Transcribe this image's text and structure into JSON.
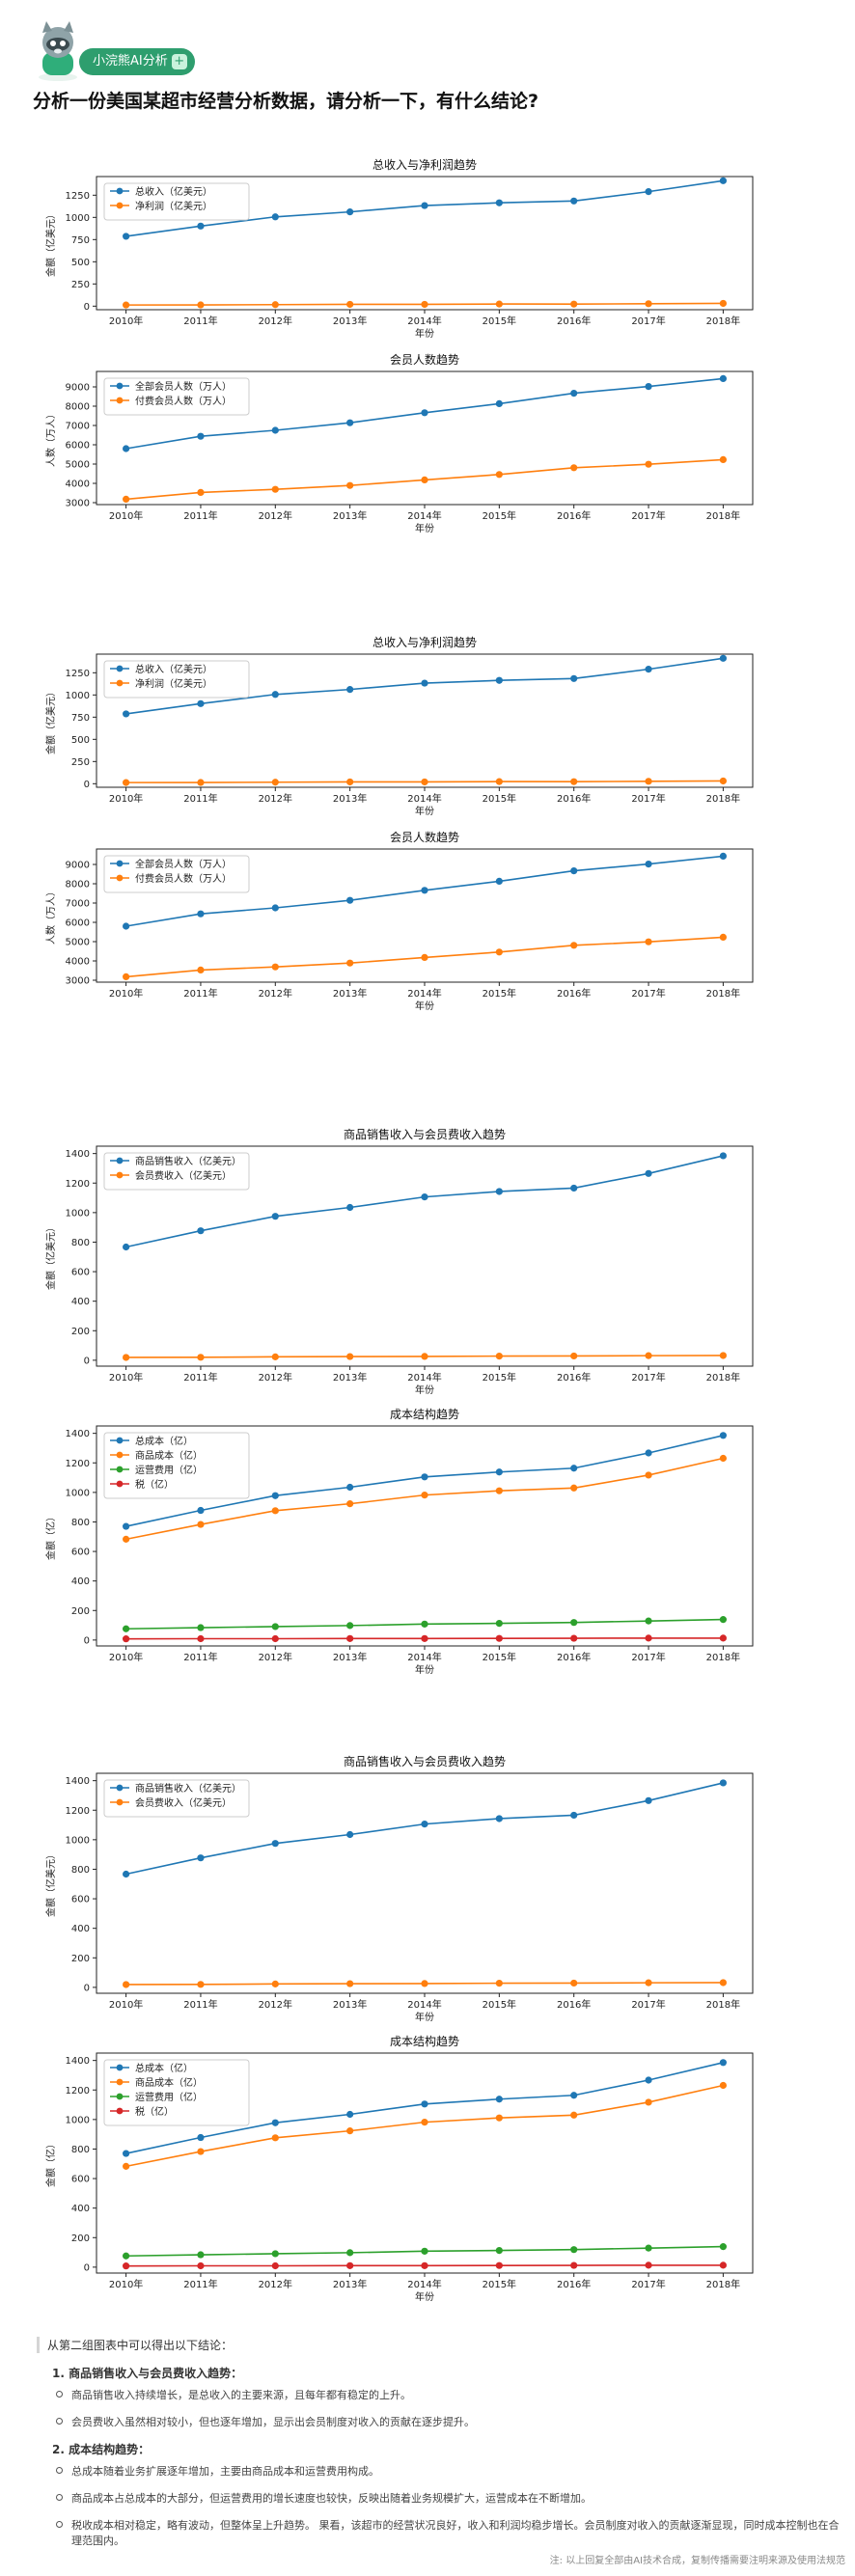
{
  "badge_label": "小浣熊AI分析",
  "badge_plus": "+",
  "question": "分析一份美国某超市经营分析数据，请分析一下，有什么结论?",
  "years": [
    "2010年",
    "2011年",
    "2012年",
    "2013年",
    "2014年",
    "2015年",
    "2016年",
    "2017年",
    "2018年"
  ],
  "colors": {
    "blue": "#1f77b4",
    "orange": "#ff7f0e",
    "green": "#2ca02c",
    "red": "#d62728"
  },
  "chart_data": [
    {
      "type": "line",
      "title": "总收入与净利润趋势",
      "xlabel": "年份",
      "ylabel": "金额（亿美元）",
      "categories": [
        "2010年",
        "2011年",
        "2012年",
        "2013年",
        "2014年",
        "2015年",
        "2016年",
        "2017年",
        "2018年"
      ],
      "ylim": [
        -40,
        1460
      ],
      "yticks": [
        0,
        250,
        500,
        750,
        1000,
        1250
      ],
      "legend": "top-left",
      "series": [
        {
          "name": "总收入（亿美元）",
          "color": "#1f77b4",
          "values": [
            787,
            902,
            1006,
            1062,
            1133,
            1164,
            1185,
            1290,
            1413
          ]
        },
        {
          "name": "净利润（亿美元）",
          "color": "#ff7f0e",
          "values": [
            13,
            14,
            17,
            20,
            20,
            24,
            23,
            27,
            31
          ]
        }
      ]
    },
    {
      "type": "line",
      "title": "会员人数趋势",
      "xlabel": "年份",
      "ylabel": "人数（万人）",
      "categories": [
        "2010年",
        "2011年",
        "2012年",
        "2013年",
        "2014年",
        "2015年",
        "2016年",
        "2017年",
        "2018年"
      ],
      "ylim": [
        2900,
        9800
      ],
      "yticks": [
        3000,
        4000,
        5000,
        6000,
        7000,
        8000,
        9000
      ],
      "legend": "top-left",
      "series": [
        {
          "name": "全部会员人数（万人）",
          "color": "#1f77b4",
          "values": [
            5800,
            6440,
            6750,
            7140,
            7660,
            8130,
            8670,
            9020,
            9430
          ]
        },
        {
          "name": "付费会员人数（万人）",
          "color": "#ff7f0e",
          "values": [
            3180,
            3530,
            3690,
            3890,
            4180,
            4460,
            4810,
            4990,
            5230
          ]
        }
      ]
    },
    {
      "type": "line",
      "title": "总收入与净利润趋势",
      "xlabel": "年份",
      "ylabel": "金额（亿美元）",
      "categories": [
        "2010年",
        "2011年",
        "2012年",
        "2013年",
        "2014年",
        "2015年",
        "2016年",
        "2017年",
        "2018年"
      ],
      "ylim": [
        -40,
        1460
      ],
      "yticks": [
        0,
        250,
        500,
        750,
        1000,
        1250
      ],
      "legend": "top-left",
      "series": [
        {
          "name": "总收入（亿美元）",
          "color": "#1f77b4",
          "values": [
            787,
            902,
            1006,
            1062,
            1133,
            1164,
            1185,
            1290,
            1413
          ]
        },
        {
          "name": "净利润（亿美元）",
          "color": "#ff7f0e",
          "values": [
            13,
            14,
            17,
            20,
            20,
            24,
            23,
            27,
            31
          ]
        }
      ]
    },
    {
      "type": "line",
      "title": "会员人数趋势",
      "xlabel": "年份",
      "ylabel": "人数（万人）",
      "categories": [
        "2010年",
        "2011年",
        "2012年",
        "2013年",
        "2014年",
        "2015年",
        "2016年",
        "2017年",
        "2018年"
      ],
      "ylim": [
        2900,
        9800
      ],
      "yticks": [
        3000,
        4000,
        5000,
        6000,
        7000,
        8000,
        9000
      ],
      "legend": "top-left",
      "series": [
        {
          "name": "全部会员人数（万人）",
          "color": "#1f77b4",
          "values": [
            5800,
            6440,
            6750,
            7140,
            7660,
            8130,
            8670,
            9020,
            9430
          ]
        },
        {
          "name": "付费会员人数（万人）",
          "color": "#ff7f0e",
          "values": [
            3180,
            3530,
            3690,
            3890,
            4180,
            4460,
            4810,
            4990,
            5230
          ]
        }
      ]
    },
    {
      "type": "line",
      "title": "商品销售收入与会员费收入趋势",
      "xlabel": "年份",
      "ylabel": "金额（亿美元）",
      "categories": [
        "2010年",
        "2011年",
        "2012年",
        "2013年",
        "2014年",
        "2015年",
        "2016年",
        "2017年",
        "2018年"
      ],
      "ylim": [
        -40,
        1450
      ],
      "yticks": [
        0,
        200,
        400,
        600,
        800,
        1000,
        1200,
        1400
      ],
      "legend": "top-left",
      "series": [
        {
          "name": "商品销售收入（亿美元）",
          "color": "#1f77b4",
          "values": [
            767,
            877,
            975,
            1035,
            1106,
            1143,
            1166,
            1265,
            1385
          ]
        },
        {
          "name": "会员费收入（亿美元）",
          "color": "#ff7f0e",
          "values": [
            19,
            20,
            23,
            25,
            26,
            28,
            29,
            31,
            32
          ]
        }
      ]
    },
    {
      "type": "line",
      "title": "成本结构趋势",
      "xlabel": "年份",
      "ylabel": "金额（亿）",
      "categories": [
        "2010年",
        "2011年",
        "2012年",
        "2013年",
        "2014年",
        "2015年",
        "2016年",
        "2017年",
        "2018年"
      ],
      "ylim": [
        -40,
        1450
      ],
      "yticks": [
        0,
        200,
        400,
        600,
        800,
        1000,
        1200,
        1400
      ],
      "legend": "top-left",
      "series": [
        {
          "name": "总成本（亿）",
          "color": "#1f77b4",
          "values": [
            770,
            878,
            978,
            1035,
            1105,
            1138,
            1164,
            1267,
            1386
          ]
        },
        {
          "name": "商品成本（亿）",
          "color": "#ff7f0e",
          "values": [
            683,
            783,
            876,
            923,
            982,
            1011,
            1030,
            1117,
            1231
          ]
        },
        {
          "name": "运营费用（亿）",
          "color": "#2ca02c",
          "values": [
            76,
            84,
            91,
            98,
            108,
            113,
            119,
            129,
            139
          ]
        },
        {
          "name": "税（亿）",
          "color": "#d62728",
          "values": [
            8,
            9,
            9,
            10,
            10,
            11,
            12,
            13,
            13
          ]
        }
      ]
    },
    {
      "type": "line",
      "title": "商品销售收入与会员费收入趋势",
      "xlabel": "年份",
      "ylabel": "金额（亿美元）",
      "categories": [
        "2010年",
        "2011年",
        "2012年",
        "2013年",
        "2014年",
        "2015年",
        "2016年",
        "2017年",
        "2018年"
      ],
      "ylim": [
        -40,
        1450
      ],
      "yticks": [
        0,
        200,
        400,
        600,
        800,
        1000,
        1200,
        1400
      ],
      "legend": "top-left",
      "series": [
        {
          "name": "商品销售收入（亿美元）",
          "color": "#1f77b4",
          "values": [
            767,
            877,
            975,
            1035,
            1106,
            1143,
            1166,
            1265,
            1385
          ]
        },
        {
          "name": "会员费收入（亿美元）",
          "color": "#ff7f0e",
          "values": [
            19,
            20,
            23,
            25,
            26,
            28,
            29,
            31,
            32
          ]
        }
      ]
    },
    {
      "type": "line",
      "title": "成本结构趋势",
      "xlabel": "年份",
      "ylabel": "金额（亿）",
      "categories": [
        "2010年",
        "2011年",
        "2012年",
        "2013年",
        "2014年",
        "2015年",
        "2016年",
        "2017年",
        "2018年"
      ],
      "ylim": [
        -40,
        1450
      ],
      "yticks": [
        0,
        200,
        400,
        600,
        800,
        1000,
        1200,
        1400
      ],
      "legend": "top-left",
      "series": [
        {
          "name": "总成本（亿）",
          "color": "#1f77b4",
          "values": [
            770,
            878,
            978,
            1035,
            1105,
            1138,
            1164,
            1267,
            1386
          ]
        },
        {
          "name": "商品成本（亿）",
          "color": "#ff7f0e",
          "values": [
            683,
            783,
            876,
            923,
            982,
            1011,
            1030,
            1117,
            1231
          ]
        },
        {
          "name": "运营费用（亿）",
          "color": "#2ca02c",
          "values": [
            76,
            84,
            91,
            98,
            108,
            113,
            119,
            129,
            139
          ]
        },
        {
          "name": "税（亿）",
          "color": "#d62728",
          "values": [
            8,
            9,
            9,
            10,
            10,
            11,
            12,
            13,
            13
          ]
        }
      ]
    }
  ],
  "conclusion": {
    "intro": "从第二组图表中可以得出以下结论：",
    "sections": [
      {
        "title": "1. 商品销售收入与会员费收入趋势：",
        "items": [
          "商品销售收入持续增长，是总收入的主要来源，且每年都有稳定的上升。",
          "会员费收入虽然相对较小，但也逐年增加，显示出会员制度对收入的贡献在逐步提升。"
        ]
      },
      {
        "title": "2. 成本结构趋势：",
        "items": [
          "总成本随着业务扩展逐年增加，主要由商品成本和运营费用构成。",
          "商品成本占总成本的大部分，但运营费用的增长速度也较快，反映出随着业务规模扩大，运营成本在不断增加。",
          "税收成本相对稳定，略有波动，但整体呈上升趋势。 果看，该超市的经营状况良好，收入和利润均稳步增长。会员制度对收入的贡献逐渐显现，同时成本控制也在合理范围内。"
        ]
      }
    ]
  },
  "footer": "注: 以上回复全部由AI技术合成，复制传播需要注明来源及使用法规范"
}
